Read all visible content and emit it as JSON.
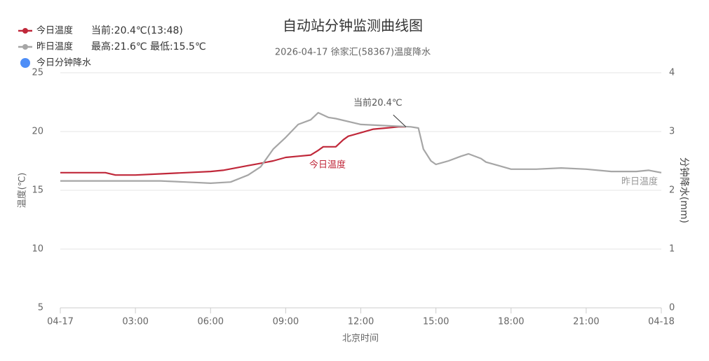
{
  "chart_data": {
    "type": "line",
    "title": "自动站分钟监测曲线图",
    "subtitle": "2026-04-17 徐家汇(58367)温度降水",
    "xlabel": "北京时间",
    "ylabel": "温度(℃)",
    "y2label": "分钟降水(mm)",
    "annotations": [
      "当前20.4℃"
    ],
    "xlim": [
      0,
      24
    ],
    "xticks": [
      {
        "value": 0,
        "label": "04-17"
      },
      {
        "value": 3,
        "label": "03:00"
      },
      {
        "value": 6,
        "label": "06:00"
      },
      {
        "value": 9,
        "label": "09:00"
      },
      {
        "value": 12,
        "label": "12:00"
      },
      {
        "value": 15,
        "label": "15:00"
      },
      {
        "value": 18,
        "label": "18:00"
      },
      {
        "value": 21,
        "label": "21:00"
      },
      {
        "value": 24,
        "label": "04-18"
      }
    ],
    "ylim": [
      5,
      25
    ],
    "yticks": [
      5,
      10,
      15,
      20,
      25
    ],
    "y2lim": [
      0,
      4
    ],
    "y2ticks": [
      0,
      1,
      2,
      3,
      4
    ],
    "grid": true,
    "series": [
      {
        "name": "今日温度",
        "legend_note": "当前:20.4℃(13:48)",
        "color": "#c0283a",
        "x": [
          0,
          1,
          1.8,
          2.2,
          3,
          4,
          5,
          6,
          6.5,
          7,
          7.5,
          8,
          8.5,
          9,
          9.5,
          10,
          10.3,
          10.5,
          11,
          11.3,
          11.5,
          12,
          12.5,
          13,
          13.5,
          13.8
        ],
        "values": [
          16.5,
          16.5,
          16.5,
          16.3,
          16.3,
          16.4,
          16.5,
          16.6,
          16.7,
          16.9,
          17.1,
          17.3,
          17.5,
          17.8,
          17.9,
          18.0,
          18.4,
          18.7,
          18.7,
          19.3,
          19.6,
          19.9,
          20.2,
          20.3,
          20.4,
          20.4
        ]
      },
      {
        "name": "昨日温度",
        "legend_note": "最高:21.6℃ 最低:15.5℃",
        "color": "#a6a6a6",
        "x": [
          0,
          1,
          2,
          3,
          4,
          5,
          6,
          6.8,
          7.5,
          8,
          8.5,
          9,
          9.5,
          10,
          10.3,
          10.7,
          11,
          12,
          13,
          14,
          14.3,
          14.5,
          14.8,
          15,
          15.5,
          16,
          16.3,
          16.8,
          17,
          17.5,
          18,
          19,
          20,
          21,
          22,
          23,
          23.5,
          24
        ],
        "values": [
          15.8,
          15.8,
          15.8,
          15.8,
          15.8,
          15.7,
          15.6,
          15.7,
          16.3,
          17.0,
          18.5,
          19.5,
          20.6,
          21.0,
          21.6,
          21.2,
          21.1,
          20.6,
          20.5,
          20.4,
          20.3,
          18.5,
          17.5,
          17.2,
          17.5,
          17.9,
          18.1,
          17.7,
          17.4,
          17.1,
          16.8,
          16.8,
          16.9,
          16.8,
          16.6,
          16.6,
          16.7,
          16.5
        ]
      },
      {
        "name": "今日分钟降水",
        "color": "#4e8ef7",
        "axis": "y2"
      }
    ]
  }
}
